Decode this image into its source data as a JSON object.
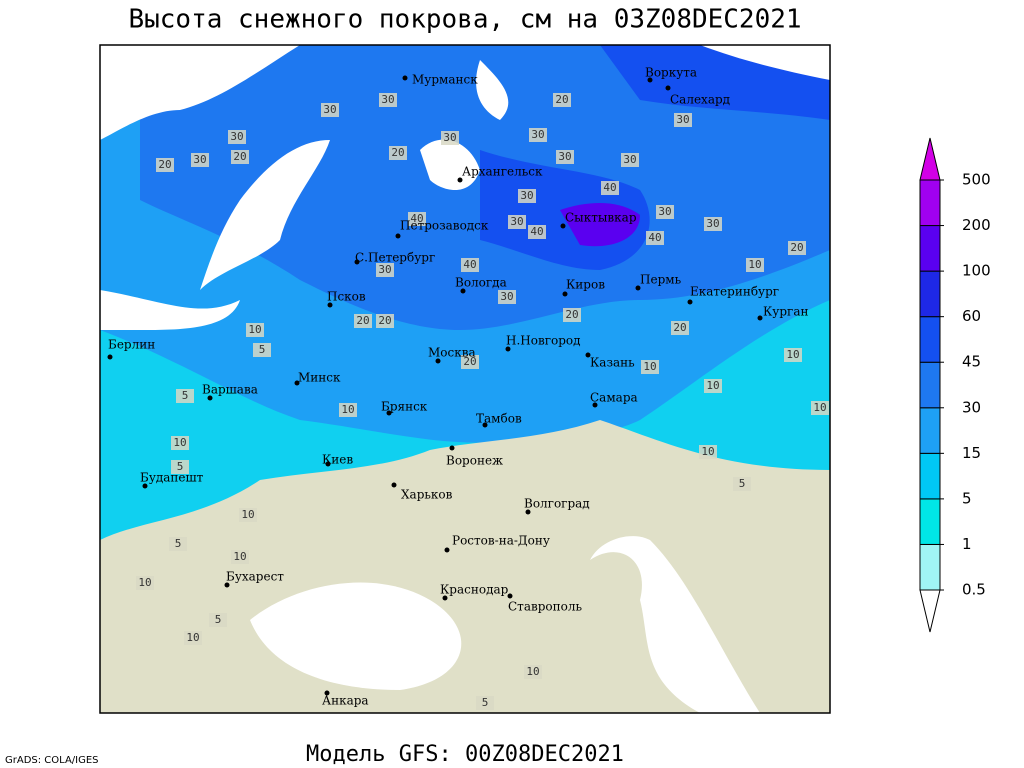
{
  "header": {
    "title": "Высота снежного покрова, см на 03Z08DEC2021",
    "subtitle": "Модель GFS: 00Z08DEC2021",
    "credit": "GrADS: COLA/IGES"
  },
  "map": {
    "cities": [
      "Мурманск",
      "Воркута",
      "Салехард",
      "Архангельск",
      "Петрозаводск",
      "Сыктывкар",
      "С.Петербург",
      "Вологда",
      "Киров",
      "Пермь",
      "Екатеринбург",
      "Курган",
      "Псков",
      "Берлин",
      "Н.Новгород",
      "Казань",
      "Москва",
      "Минск",
      "Варшава",
      "Самара",
      "Брянск",
      "Тамбов",
      "Киев",
      "Воронеж",
      "Будапешт",
      "Харьков",
      "Волгоград",
      "Ростов-на-Дону",
      "Бухарест",
      "Краснодар",
      "Ставрополь",
      "Анкара"
    ],
    "contour_labels": [
      30,
      30,
      20,
      30,
      30,
      20,
      30,
      20,
      30,
      20,
      30,
      30,
      30,
      40,
      30,
      30,
      30,
      40,
      30,
      40,
      40,
      20,
      10,
      30,
      40,
      30,
      20,
      20,
      10,
      20,
      20,
      5,
      10,
      20,
      10,
      5,
      10,
      10,
      10,
      10,
      10,
      5,
      5,
      10,
      5,
      10,
      10,
      5,
      10,
      10,
      5
    ]
  },
  "legend": {
    "levels": [
      0.5,
      1,
      5,
      15,
      30,
      45,
      60,
      100,
      200,
      500
    ],
    "colors": [
      "#ffffff",
      "#a0f5f5",
      "#00e6e6",
      "#00c8f5",
      "#1ea0f5",
      "#1e78f0",
      "#1450f0",
      "#1e28e6",
      "#5a00f0",
      "#a000f0",
      "#d200e6"
    ]
  }
}
